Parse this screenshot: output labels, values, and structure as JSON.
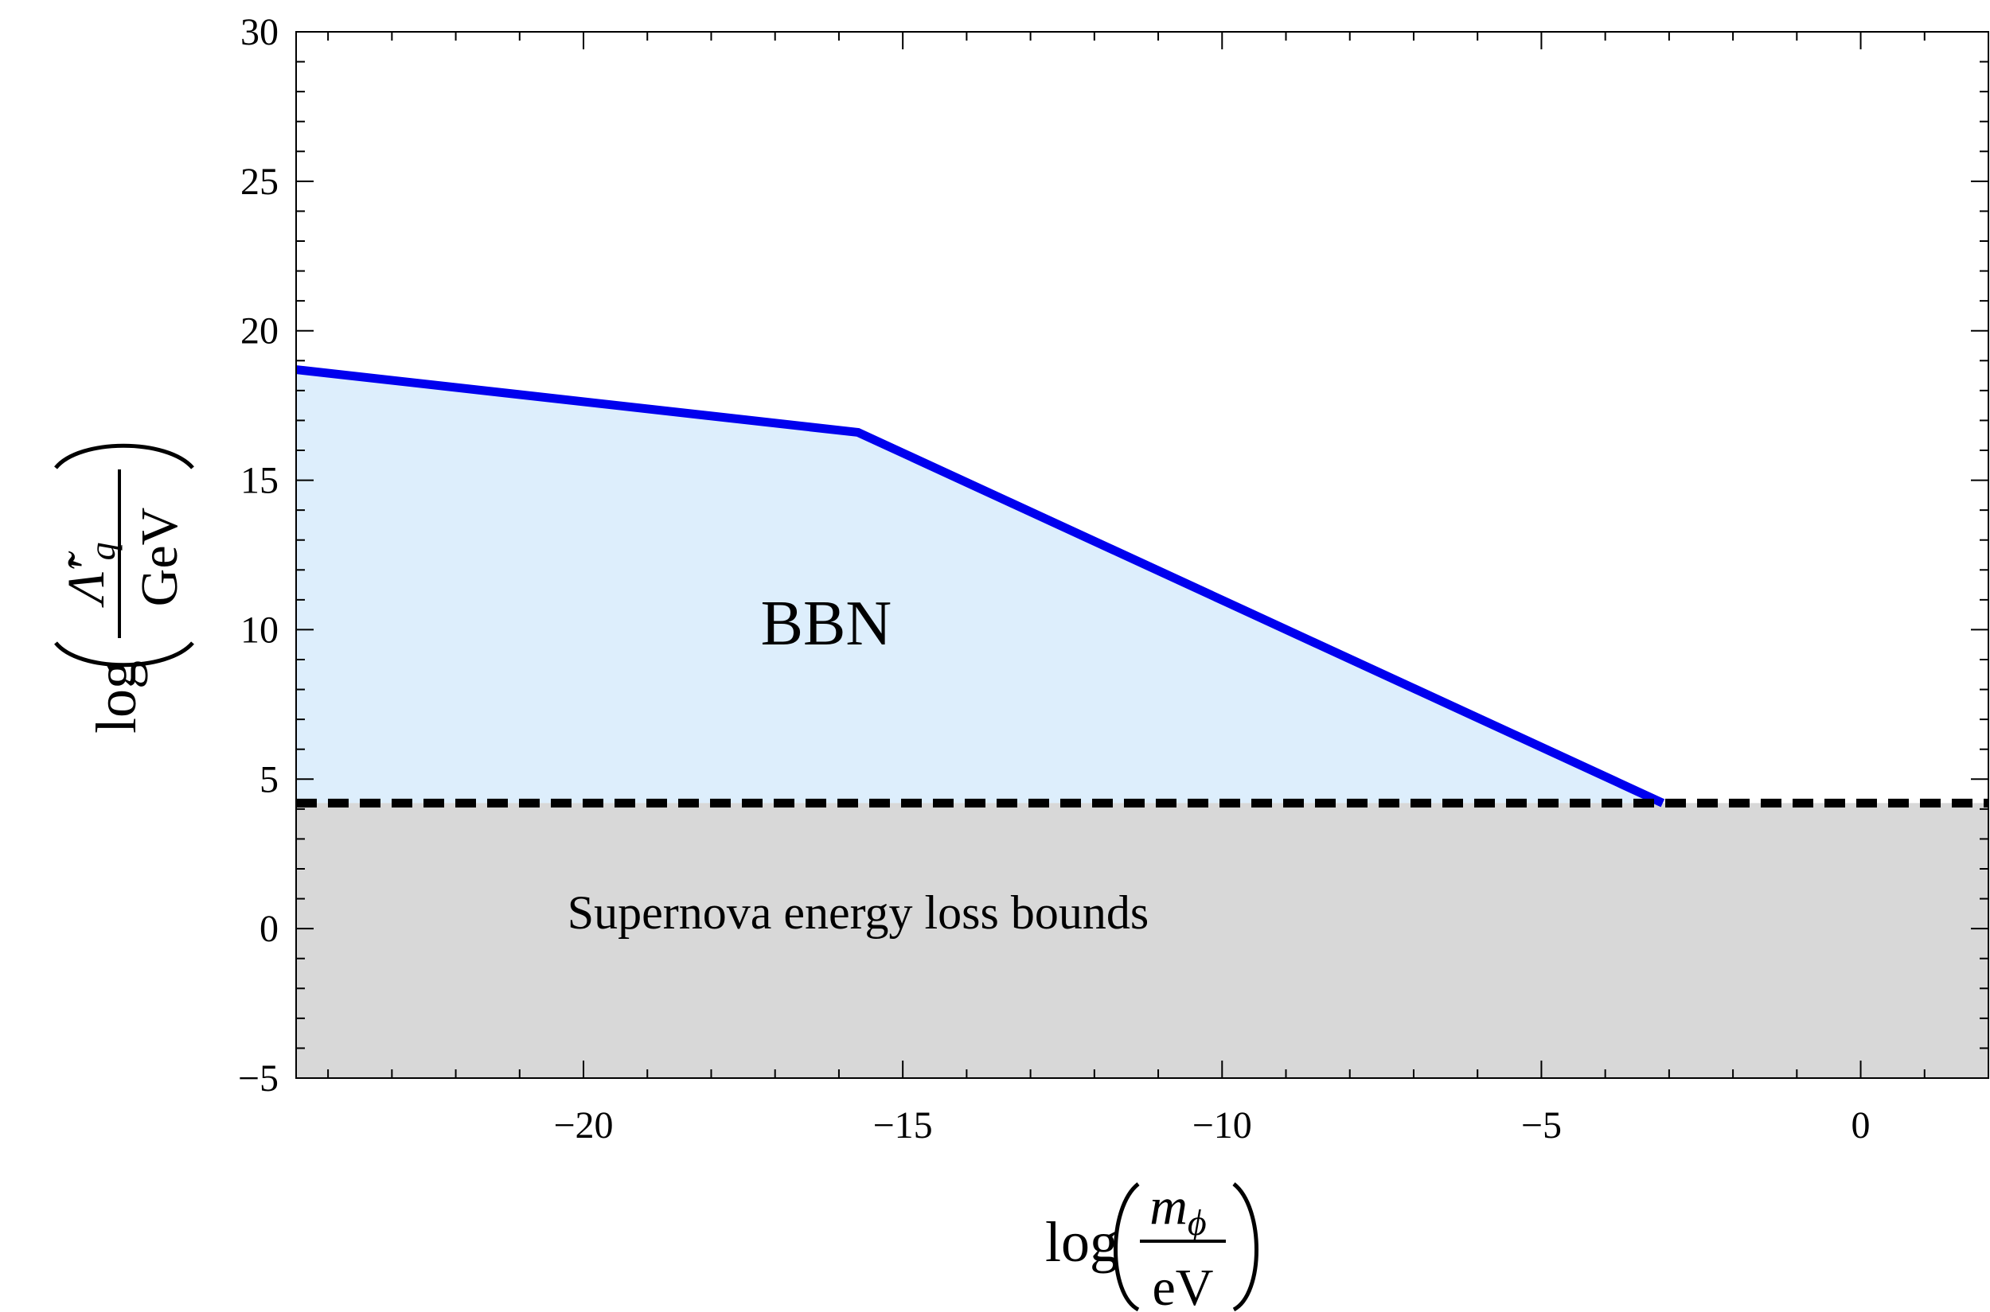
{
  "chart_data": {
    "type": "line",
    "title": "",
    "xlabel": {
      "prefix": "log",
      "numerator": "m",
      "numerator_sub": "ϕ",
      "denominator": "eV"
    },
    "ylabel": {
      "prefix": "log",
      "numerator": "Λ̃′",
      "numerator_sub": "q",
      "denominator": "GeV"
    },
    "xlim": [
      -24.5,
      2
    ],
    "ylim": [
      -5,
      30
    ],
    "x_ticks": [
      -20,
      -15,
      -10,
      -5,
      0
    ],
    "x_tick_labels": [
      "−20",
      "−15",
      "−10",
      "−5",
      "0"
    ],
    "y_ticks": [
      -5,
      0,
      5,
      10,
      15,
      20,
      25,
      30
    ],
    "y_tick_labels": [
      "−5",
      "0",
      "5",
      "10",
      "15",
      "20",
      "25",
      "30"
    ],
    "x_minor_step": 1,
    "y_minor_step": 1,
    "grid": false,
    "series": [
      {
        "name": "BBN bound",
        "style": "solid",
        "color": "#0000ee",
        "points": [
          [
            -24.5,
            18.7
          ],
          [
            -15.7,
            16.6
          ],
          [
            -3.1,
            4.2
          ]
        ]
      },
      {
        "name": "Supernova bound",
        "style": "dashed",
        "color": "#000000",
        "points": [
          [
            -24.5,
            4.2
          ],
          [
            2,
            4.2
          ]
        ]
      }
    ],
    "regions": [
      {
        "name": "BBN",
        "label": "BBN",
        "color": "#ddeefc",
        "label_at": [
          -16.2,
          9.5
        ]
      },
      {
        "name": "supernova",
        "label": "Supernova energy loss bounds",
        "color": "#d8d8d8",
        "label_at": [
          -15.7,
          0
        ]
      }
    ]
  }
}
